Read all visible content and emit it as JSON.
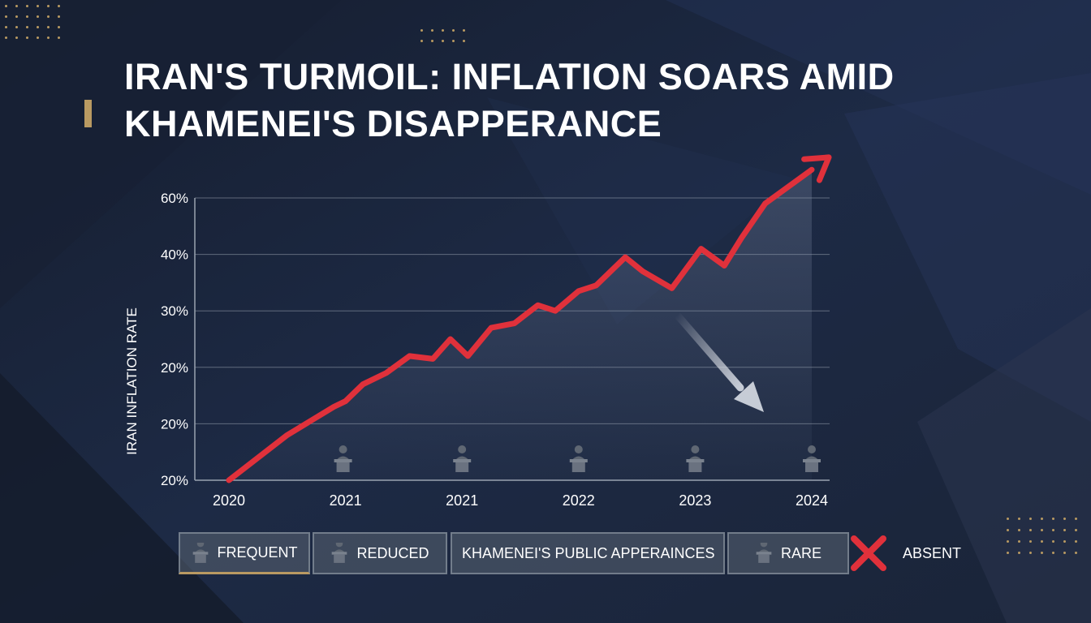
{
  "title_lines": [
    "IRAN'S TURMOIL: INFLATION SOARS AMID",
    "KHAMENEI'S DISAPPERANCE"
  ],
  "colors": {
    "background": "#1b2740",
    "line": "#e0313b",
    "accent": "#b99a62",
    "grid": "#9aa3b0"
  },
  "chart_data": {
    "type": "line",
    "ylabel": "IRAN INFLATION RATE",
    "y_tick_labels": [
      "60%",
      "40%",
      "30%",
      "20%",
      "20%",
      "20%"
    ],
    "x_tick_labels": [
      "2020",
      "2021",
      "2021",
      "2022",
      "2023",
      "2024"
    ],
    "grid": true,
    "series": [
      {
        "x": [
          0,
          0.5,
          0.9,
          1.0,
          1.15,
          1.35,
          1.55,
          1.75,
          1.9,
          2.05,
          2.25,
          2.45,
          2.65,
          2.8,
          3.0,
          3.15,
          3.4,
          3.55,
          3.8,
          4.05,
          4.25,
          4.4,
          4.6,
          5.0
        ],
        "y": [
          0,
          0.8,
          1.3,
          1.4,
          1.7,
          1.9,
          2.2,
          2.15,
          2.5,
          2.2,
          2.7,
          2.78,
          3.1,
          3.0,
          3.35,
          3.45,
          3.95,
          3.7,
          3.4,
          4.1,
          3.8,
          4.3,
          4.9,
          5.5
        ]
      }
    ],
    "annotation_icons": [
      "podium-icon",
      "podium-icon",
      "podium-icon",
      "podium-icon",
      "podium-icon"
    ]
  },
  "legend": {
    "frequent": "FREQUENT",
    "reduced": "REDUCED",
    "title": "KHAMENEI'S PUBLIC APPERAINCES",
    "rare": "RARE",
    "absent": "ABSENT"
  }
}
